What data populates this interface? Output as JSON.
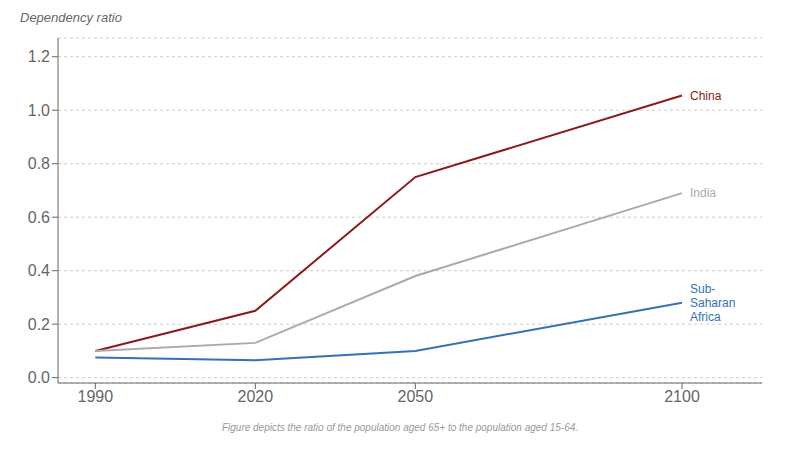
{
  "chart_data": {
    "type": "line",
    "ylabel": "Dependency ratio",
    "footnote": "Figure depicts the ratio of the population aged 65+ to the population aged 15-64.",
    "x": [
      1990,
      2020,
      2050,
      2100
    ],
    "series": [
      {
        "name": "China",
        "color": "#8b1a1a",
        "values": [
          0.1,
          0.25,
          0.75,
          1.055
        ]
      },
      {
        "name": "India",
        "color": "#aaaaaa",
        "values": [
          0.1,
          0.13,
          0.38,
          0.69
        ]
      },
      {
        "name": "Sub-\nSaharan\nAfrica",
        "color": "#3272b5",
        "values": [
          0.075,
          0.065,
          0.1,
          0.28
        ]
      }
    ],
    "xlim": [
      1983,
      2115
    ],
    "ylim": [
      -0.02,
      1.27
    ],
    "xticks": [
      1990,
      2020,
      2050,
      2100
    ],
    "yticks": [
      {
        "value": 0.0,
        "label": "0.0"
      },
      0.2,
      0.4,
      0.6,
      0.8,
      {
        "value": 1.0,
        "label": "1.0"
      },
      1.2
    ],
    "grid": true
  }
}
